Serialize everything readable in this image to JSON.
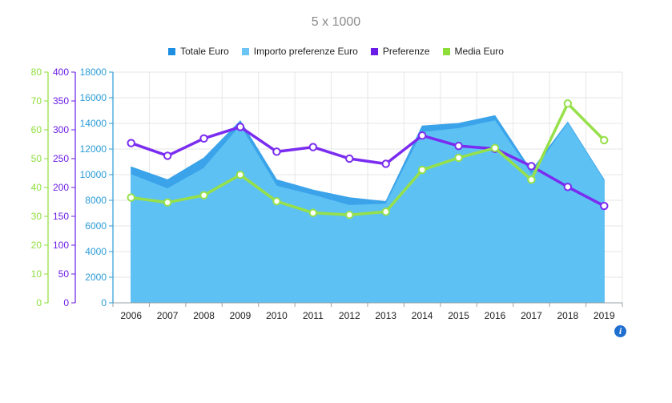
{
  "title": "5 x 1000",
  "legend": [
    {
      "label": "Totale Euro",
      "color": "#1e8fe0"
    },
    {
      "label": "Importo preferenze Euro",
      "color": "#6cc4f2"
    },
    {
      "label": "Preferenze",
      "color": "#6b1de8"
    },
    {
      "label": "Media Euro",
      "color": "#8ede3a"
    }
  ],
  "info_icon": "info-icon",
  "chart_data": {
    "type": "area",
    "categories": [
      "2006",
      "2007",
      "2008",
      "2009",
      "2010",
      "2011",
      "2012",
      "2013",
      "2014",
      "2015",
      "2016",
      "2017",
      "2018",
      "2019"
    ],
    "series": [
      {
        "name": "Totale Euro",
        "type": "area",
        "axis": "left",
        "color": "#3aa3ea",
        "values": [
          10600,
          9600,
          11300,
          14200,
          9600,
          8800,
          8200,
          7900,
          13800,
          14000,
          14600,
          10300,
          14100,
          9600
        ]
      },
      {
        "name": "Importo preferenze Euro",
        "type": "area",
        "axis": "left",
        "color": "#5ec1f3",
        "values": [
          10000,
          8900,
          10500,
          13800,
          9100,
          8400,
          7600,
          7700,
          13300,
          13600,
          14200,
          10000,
          14000,
          9500
        ]
      },
      {
        "name": "Preferenze",
        "type": "line",
        "axis": "purple",
        "color": "#7a2cf0",
        "values": [
          277,
          255,
          285,
          305,
          262,
          270,
          250,
          241,
          290,
          272,
          267,
          237,
          201,
          168
        ]
      },
      {
        "name": "Media Euro",
        "type": "line",
        "axis": "green",
        "color": "#96e04a",
        "values": [
          36.5,
          34.8,
          37.3,
          44.4,
          35.2,
          31.2,
          30.5,
          31.6,
          46.1,
          50.3,
          53.7,
          42.7,
          69.1,
          56.4
        ]
      }
    ],
    "y_left": {
      "min": 0,
      "max": 18000,
      "ticks": [
        "0",
        "2000",
        "4000",
        "6000",
        "8000",
        "10000",
        "12000",
        "14000",
        "16000",
        "18000"
      ],
      "color": "#2a9bd8"
    },
    "y_purple": {
      "min": 0,
      "max": 400,
      "ticks": [
        "0",
        "50",
        "100",
        "150",
        "200",
        "250",
        "300",
        "350",
        "400"
      ],
      "color": "#6b1de8"
    },
    "y_green": {
      "min": 0,
      "max": 80,
      "ticks": [
        "0",
        "10",
        "20",
        "30",
        "40",
        "50",
        "60",
        "70",
        "80"
      ],
      "color": "#8ede3a"
    },
    "grid": true
  }
}
